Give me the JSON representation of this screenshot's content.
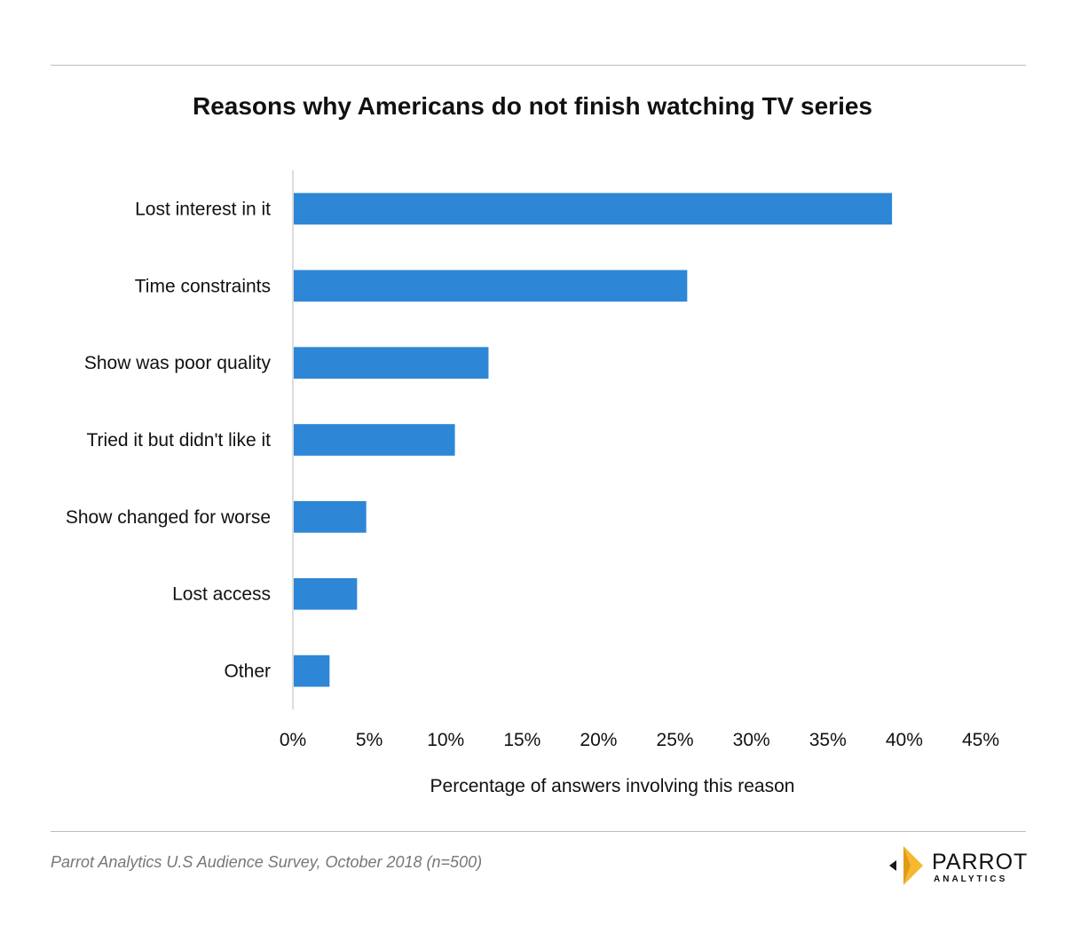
{
  "chart_data": {
    "type": "bar",
    "orientation": "horizontal",
    "title": "Reasons why Americans do not finish watching TV series",
    "xlabel": "Percentage of answers involving this reason",
    "ylabel": "",
    "categories": [
      "Lost interest in it",
      "Time constraints",
      "Show was poor quality",
      "Tried it but didn't like it",
      "Show changed for worse",
      "Lost access",
      "Other"
    ],
    "values": [
      39.2,
      25.8,
      12.8,
      10.6,
      4.8,
      4.2,
      2.4
    ],
    "xlim": [
      0,
      45
    ],
    "xticks": [
      0,
      5,
      10,
      15,
      20,
      25,
      30,
      35,
      40,
      45
    ],
    "xtick_labels": [
      "0%",
      "5%",
      "10%",
      "15%",
      "20%",
      "25%",
      "30%",
      "35%",
      "40%",
      "45%"
    ],
    "bar_color": "#2e86d6",
    "grid": false
  },
  "footer": {
    "source": "Parrot Analytics U.S Audience Survey, October 2018 (n=500)"
  },
  "logo": {
    "name": "PARROT",
    "sub": "ANALYTICS",
    "icon": "parrot-logo-icon",
    "accent": "#f5b82e"
  }
}
